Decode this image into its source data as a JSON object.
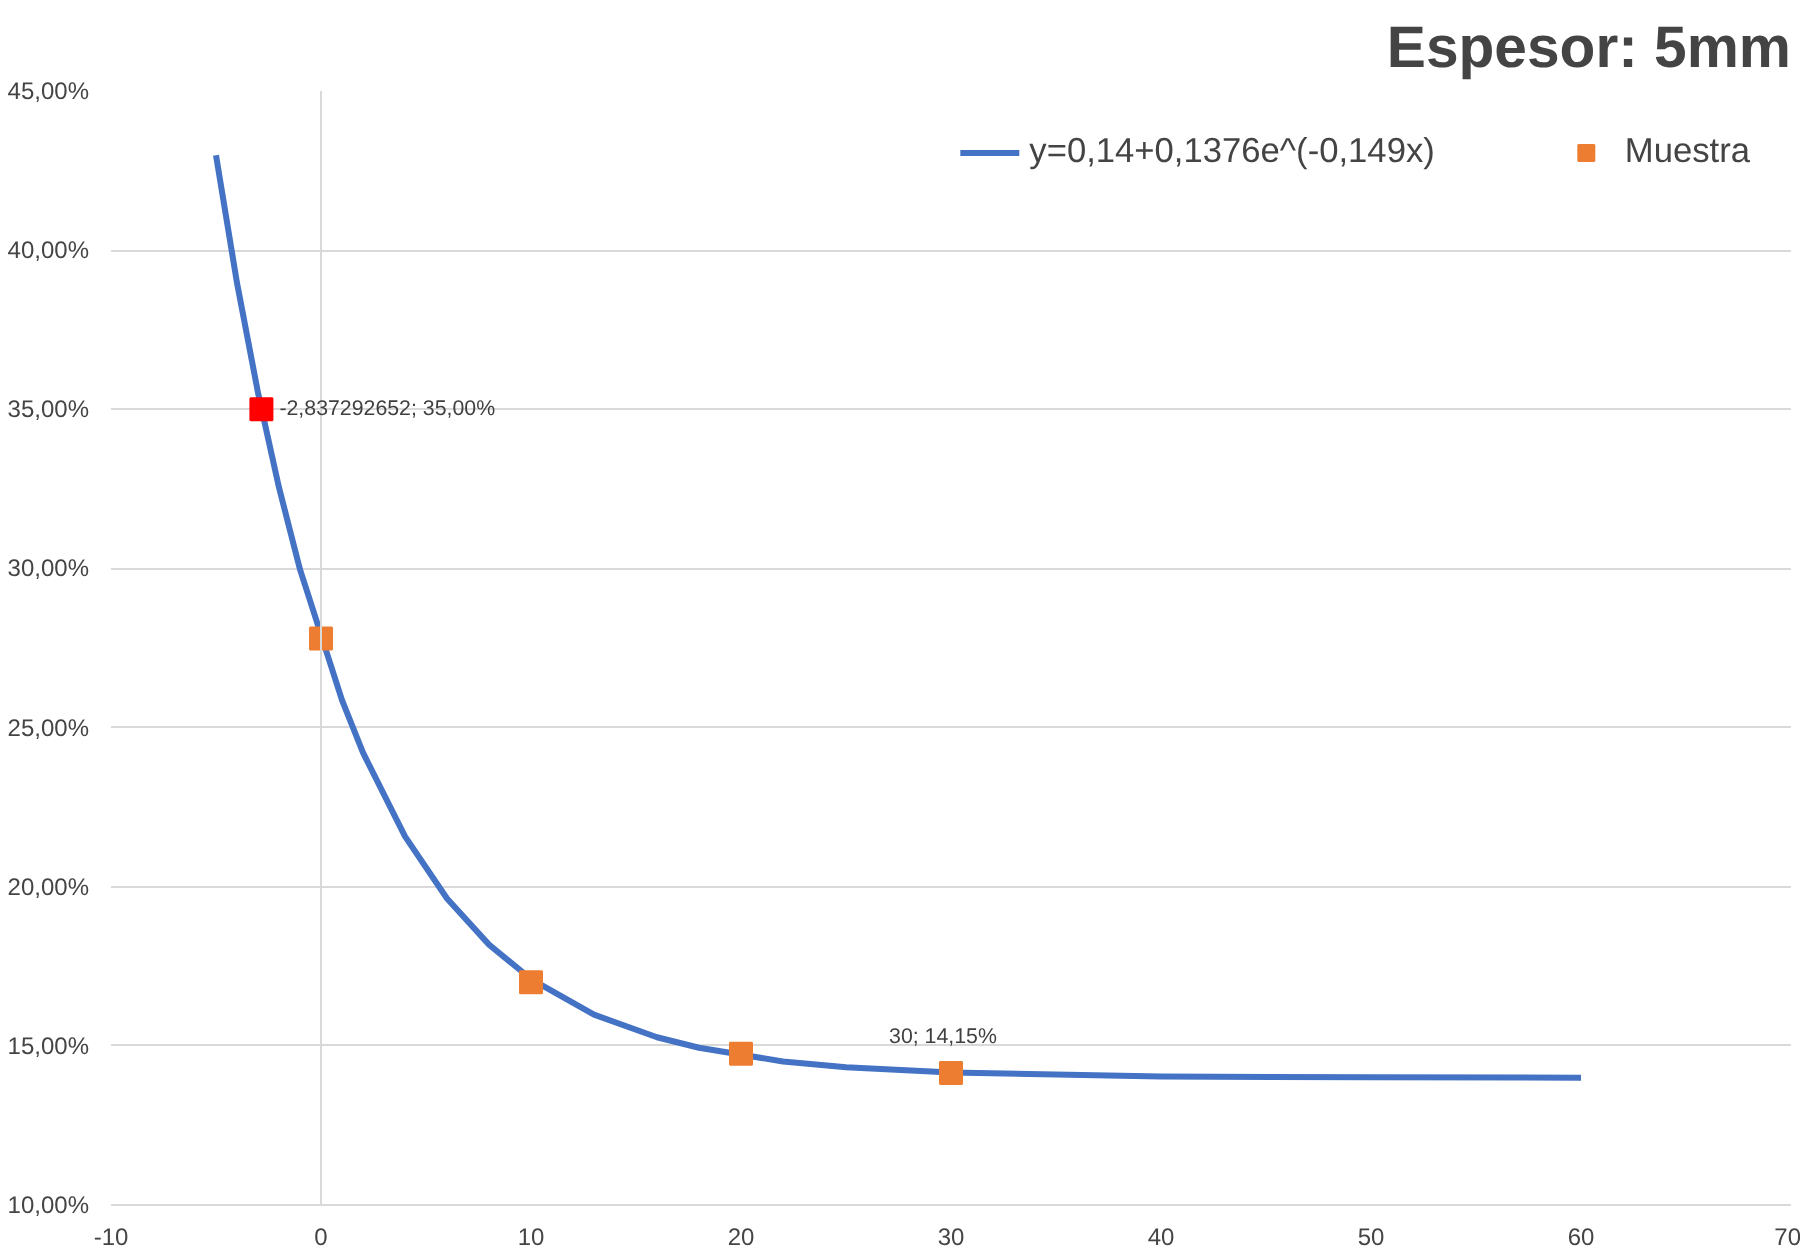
{
  "chart_data": {
    "type": "scatter",
    "title": "Espesor: 5mm",
    "xlim": [
      -10,
      70
    ],
    "xticks": [
      -10,
      0,
      10,
      20,
      30,
      40,
      50,
      60,
      70
    ],
    "ylim": [
      10,
      45
    ],
    "yticks": [
      {
        "value": 10,
        "label": "10,00%"
      },
      {
        "value": 15,
        "label": "15,00%"
      },
      {
        "value": 20,
        "label": "20,00%"
      },
      {
        "value": 25,
        "label": "25,00%"
      },
      {
        "value": 30,
        "label": "30,00%"
      },
      {
        "value": 35,
        "label": "35,00%"
      },
      {
        "value": 40,
        "label": "40,00%"
      },
      {
        "value": 45,
        "label": "45,00%"
      }
    ],
    "grid": "y",
    "legend": "top",
    "marker": "square",
    "ref_lines": [
      {
        "axis": "x",
        "value": 0,
        "color": "#d9d9d9"
      }
    ],
    "series": [
      {
        "name": "y=0,14+0,1376e^(-0,149x)",
        "type": "line",
        "marker": "none",
        "color": "#4472c4",
        "line_style": "solid",
        "x": [
          -5,
          -4,
          -3,
          -2,
          -1,
          1,
          2,
          4,
          6,
          8,
          10,
          13,
          16,
          18,
          22,
          25,
          30,
          40,
          50,
          60
        ],
        "values": [
          42.98,
          38.97,
          35.52,
          32.54,
          29.97,
          25.86,
          24.21,
          21.58,
          19.63,
          18.18,
          17.1,
          15.98,
          15.27,
          14.94,
          14.51,
          14.33,
          14.16,
          14.04,
          14.01,
          14.0
        ]
      },
      {
        "name": "Muestra",
        "color": "#ed7d31",
        "x": [
          0,
          10,
          20,
          30
        ],
        "values": [
          27.8,
          17.0,
          14.75,
          14.15
        ],
        "value_labels": [
          null,
          null,
          null,
          "30; 14,15%"
        ]
      },
      {
        "color": "#ff0000",
        "x": [
          -2.837292652
        ],
        "values": [
          35.0
        ],
        "value_labels": [
          "-2,837292652; 35,00%"
        ]
      }
    ]
  }
}
